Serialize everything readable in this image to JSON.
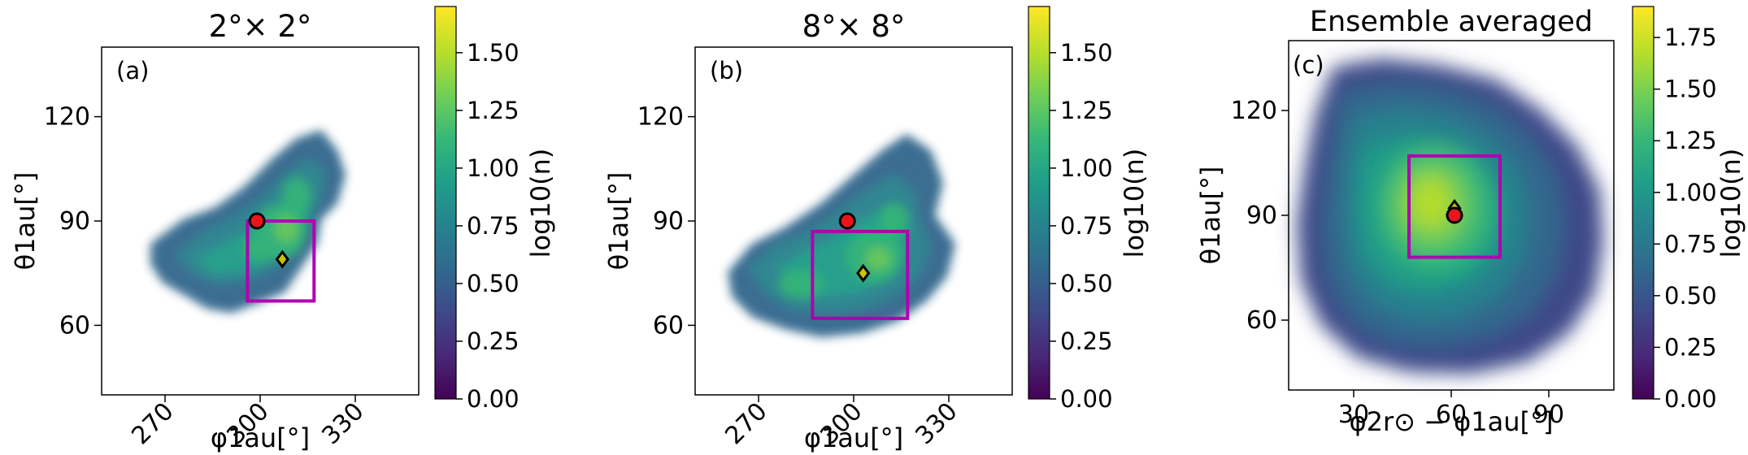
{
  "figure": {
    "colors": {
      "box": "#b000b0",
      "circle_fill": "#e8161b",
      "diamond_fill": "#c8c400",
      "marker_edge": "#000000",
      "colormap": [
        "#440154",
        "#482878",
        "#3e4989",
        "#31688e",
        "#26828e",
        "#1f9e89",
        "#35b779",
        "#6ece58",
        "#b5de2b",
        "#fde725"
      ]
    }
  },
  "chart_data": [
    {
      "type": "heatmap",
      "title": "2$^\\circ$$\\times$2$^\\circ$",
      "title_text": "2°× 2°",
      "panel_label": "(a)",
      "xlabel": "φ1au[°]",
      "ylabel": "θ1au[°]",
      "xlim": [
        250,
        350
      ],
      "ylim": [
        40,
        140
      ],
      "xticks": [
        270,
        300,
        330
      ],
      "yticks": [
        60,
        90,
        120
      ],
      "colorbar": {
        "label": "log10(n)",
        "range": [
          0,
          1.7
        ],
        "ticks": [
          "0.00",
          "0.25",
          "0.50",
          "0.75",
          "1.00",
          "1.25",
          "1.50"
        ]
      },
      "box": {
        "x": [
          296,
          317
        ],
        "y": [
          67,
          90
        ]
      },
      "circle": {
        "x": 299,
        "y": 90
      },
      "diamond": {
        "x": 307,
        "y": 79
      }
    },
    {
      "type": "heatmap",
      "title_text": "8°× 8°",
      "panel_label": "(b)",
      "xlabel": "φ1au[°]",
      "ylabel": "θ1au[°]",
      "xlim": [
        250,
        350
      ],
      "ylim": [
        40,
        140
      ],
      "xticks": [
        270,
        300,
        330
      ],
      "yticks": [
        60,
        90,
        120
      ],
      "colorbar": {
        "label": "log10(n)",
        "range": [
          0,
          1.7
        ],
        "ticks": [
          "0.00",
          "0.25",
          "0.50",
          "0.75",
          "1.00",
          "1.25",
          "1.50"
        ]
      },
      "box": {
        "x": [
          287,
          317
        ],
        "y": [
          62,
          87
        ]
      },
      "circle": {
        "x": 298,
        "y": 90
      },
      "diamond": {
        "x": 303,
        "y": 75
      }
    },
    {
      "type": "heatmap",
      "title_text": "Ensemble averaged",
      "panel_label": "(c)",
      "xlabel": "φ2r⊙ − φ1au[°]",
      "ylabel": "θ1au[°]",
      "xlim": [
        10,
        110
      ],
      "ylim": [
        40,
        140
      ],
      "xticks": [
        30,
        60,
        90
      ],
      "yticks": [
        60,
        90,
        120
      ],
      "colorbar": {
        "label": "log10(n)",
        "range": [
          0,
          1.9
        ],
        "ticks": [
          "0.00",
          "0.25",
          "0.50",
          "0.75",
          "1.00",
          "1.25",
          "1.50",
          "1.75"
        ]
      },
      "box": {
        "x": [
          47,
          75
        ],
        "y": [
          78,
          107
        ]
      },
      "circle": {
        "x": 61,
        "y": 90
      },
      "diamond": {
        "x": 61,
        "y": 92
      }
    }
  ]
}
